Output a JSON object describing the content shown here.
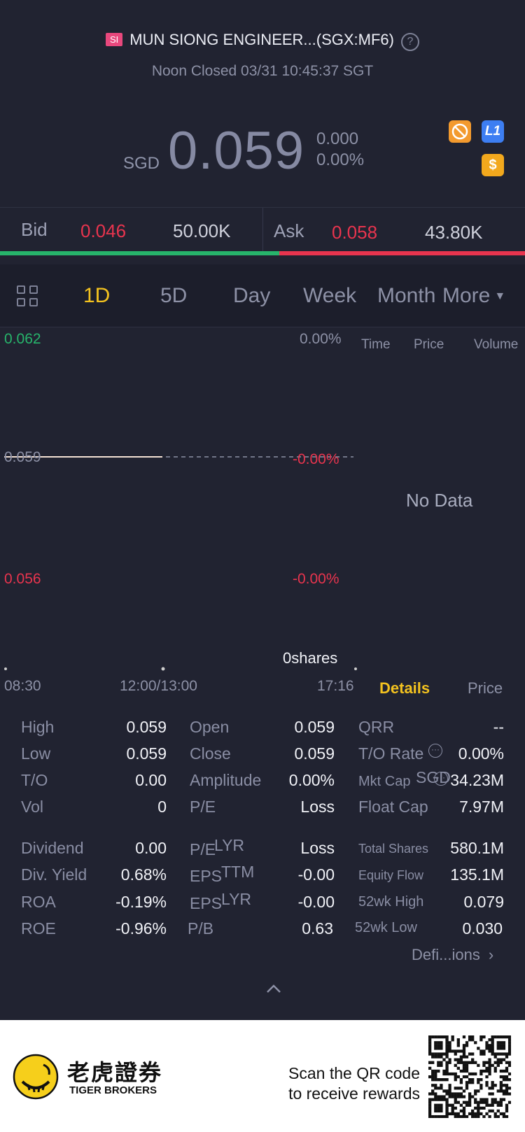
{
  "header": {
    "badge": "SI",
    "title": "MUN SIONG ENGINEER...(SGX:MF6)",
    "help": "?",
    "status": "Noon Closed 03/31 10:45:37 SGT"
  },
  "quote": {
    "currency": "SGD",
    "price": "0.059",
    "change": "0.000",
    "change_pct": "0.00%",
    "level_badge": "L1",
    "dollar_badge": "$"
  },
  "bidask": {
    "bid_label": "Bid",
    "bid_price": "0.046",
    "bid_size": "50.00K",
    "ask_label": "Ask",
    "ask_price": "0.058",
    "ask_size": "43.80K",
    "bid_ratio": 0.532
  },
  "tabs": {
    "items": [
      "1D",
      "5D",
      "Day",
      "Week",
      "Month",
      "More"
    ],
    "active": "1D"
  },
  "chart": {
    "y_top": "0.062",
    "y_mid": "0.059",
    "y_bot": "0.056",
    "pct_top": "0.00%",
    "pct_mid": "-0.00%",
    "pct_bot": "-0.00%",
    "volume": "0shares",
    "x_start": "08:30",
    "x_mid": "12:00/13:00",
    "x_end": "17:16"
  },
  "trades": {
    "col_time": "Time",
    "col_price": "Price",
    "col_volume": "Volume",
    "empty": "No Data",
    "tab_details": "Details",
    "tab_price": "Price"
  },
  "stats": {
    "high_l": "High",
    "high_v": "0.059",
    "low_l": "Low",
    "low_v": "0.059",
    "to_l": "T/O",
    "to_v": "0.00",
    "vol_l": "Vol",
    "vol_v": "0",
    "open_l": "Open",
    "open_v": "0.059",
    "close_l": "Close",
    "close_v": "0.059",
    "amp_l": "Amplitude",
    "amp_v": "0.00%",
    "pe_l": "P/E",
    "pe_v": "Loss",
    "qrr_l": "QRR",
    "qrr_v": "--",
    "torate_l": "T/O Rate",
    "torate_v": "0.00%",
    "mktcap_l": "Mkt Cap",
    "mktcap_sup": "SGD",
    "mktcap_v": "34.23M",
    "floatcap_l": "Float Cap",
    "floatcap_v": "7.97M",
    "div_l": "Dividend",
    "div_v": "0.00",
    "divy_l": "Div. Yield",
    "divy_v": "0.68%",
    "roa_l": "ROA",
    "roa_v": "-0.19%",
    "roe_l": "ROE",
    "roe_v": "-0.96%",
    "pelyr_l": "P/E",
    "pelyr_sup": "LYR",
    "pelyr_v": "Loss",
    "epsttm_l": "EPS",
    "epsttm_sup": "TTM",
    "epsttm_v": "-0.00",
    "epslyr_l": "EPS",
    "epslyr_sup": "LYR",
    "epslyr_v": "-0.00",
    "pb_l": "P/B",
    "pb_v": "0.63",
    "shares_l": "Total Shares",
    "shares_v": "580.1M",
    "eqflow_l": "Equity Flow",
    "eqflow_v": "135.1M",
    "hi52_l": "52wk High",
    "hi52_v": "0.079",
    "lo52_l": "52wk Low",
    "lo52_v": "0.030",
    "definitions": "Defi...ions"
  },
  "footer": {
    "brand_cn": "老虎證券",
    "brand_en": "TIGER BROKERS",
    "cta_line1": "Scan the QR code",
    "cta_line2": "to receive rewards"
  },
  "colors": {
    "bg": "#212331",
    "red": "#e8344e",
    "green": "#27b46b",
    "accent": "#f3c21f"
  }
}
